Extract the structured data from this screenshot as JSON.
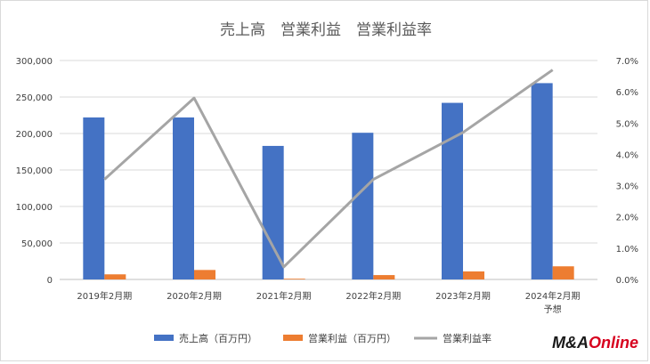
{
  "chart_data": {
    "type": "bar",
    "title": "売上高　営業利益　営業利益率",
    "categories": [
      "2019年2月期",
      "2020年2月期",
      "2021年2月期",
      "2022年2月期",
      "2023年2月期",
      "2024年2月期\n予想"
    ],
    "series": [
      {
        "name": "売上高（百万円）",
        "type": "bar",
        "axis": "left",
        "color": "#4472c4",
        "values": [
          222000,
          222000,
          183000,
          201000,
          242000,
          269000
        ]
      },
      {
        "name": "営業利益（百万円）",
        "type": "bar",
        "axis": "left",
        "color": "#ed7d31",
        "values": [
          7000,
          13000,
          1000,
          6000,
          11000,
          18000
        ]
      },
      {
        "name": "営業利益率",
        "type": "line",
        "axis": "right",
        "color": "#a5a5a5",
        "values": [
          3.2,
          5.8,
          0.4,
          3.2,
          4.7,
          6.7
        ]
      }
    ],
    "y_left": {
      "min": 0,
      "max": 300000,
      "step": 50000,
      "tick_labels": [
        "0",
        "50,000",
        "100,000",
        "150,000",
        "200,000",
        "250,000",
        "300,000"
      ]
    },
    "y_right": {
      "min": 0,
      "max": 7,
      "step": 1,
      "tick_labels": [
        "0.0%",
        "1.0%",
        "2.0%",
        "3.0%",
        "4.0%",
        "5.0%",
        "6.0%",
        "7.0%"
      ]
    },
    "grid": true,
    "legend_position": "bottom"
  },
  "branding": {
    "logo_text_a": "M&A",
    "logo_text_b": "Online",
    "logo_color_a": "#1a1a1a",
    "logo_color_b": "#d7001e"
  }
}
